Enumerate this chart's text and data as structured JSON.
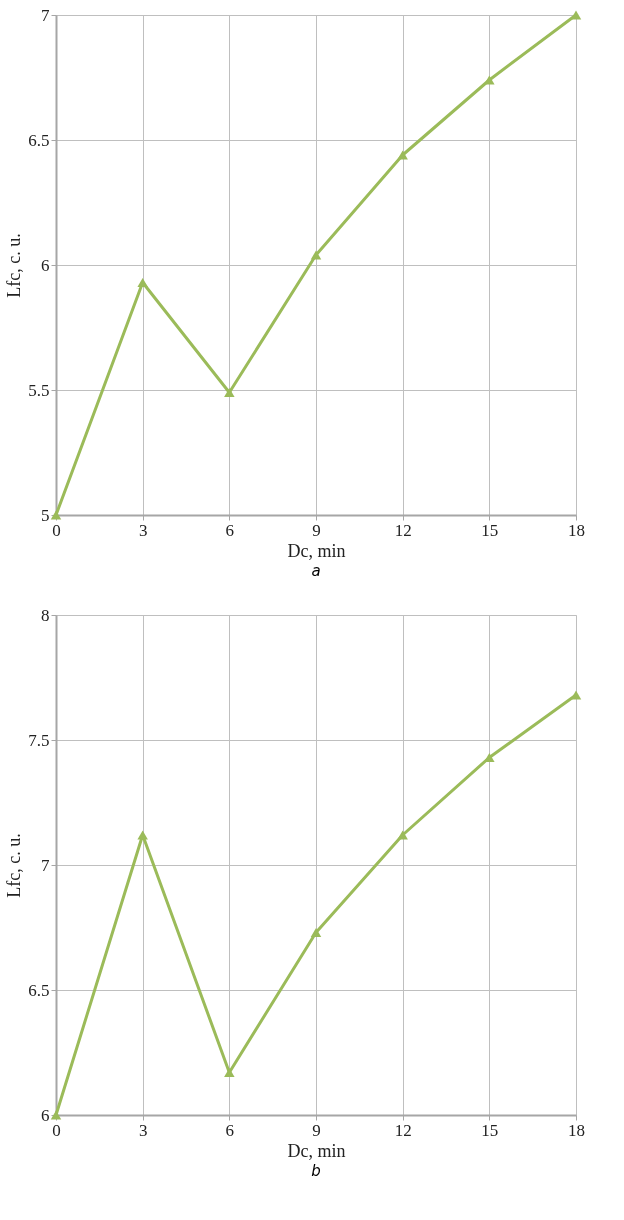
{
  "chart_data": [
    {
      "type": "line",
      "x": [
        0,
        3,
        6,
        9,
        12,
        15,
        18
      ],
      "xlabel": "Dc, min",
      "ylabel": "Lfc, c. u.",
      "annotations": [
        "a"
      ],
      "series": [
        {
          "color": "#9bbb59",
          "values": [
            5.0,
            5.93,
            5.49,
            6.04,
            6.44,
            6.74,
            7.0
          ]
        }
      ],
      "xlim": [
        0,
        18
      ],
      "xticks": [
        0,
        3,
        6,
        9,
        12,
        15,
        18
      ],
      "ylim": [
        5,
        7
      ],
      "yticks": [
        5,
        5.5,
        6,
        6.5,
        7
      ],
      "grid": true,
      "marker": "triangle",
      "line_style": "solid"
    },
    {
      "type": "line",
      "x": [
        0,
        3,
        6,
        9,
        12,
        15,
        18
      ],
      "xlabel": "Dc, min",
      "ylabel": "Lfc, c. u.",
      "annotations": [
        "b"
      ],
      "series": [
        {
          "color": "#9bbb59",
          "values": [
            6.0,
            7.12,
            6.17,
            6.73,
            7.12,
            7.43,
            7.68
          ]
        }
      ],
      "xlim": [
        0,
        18
      ],
      "xticks": [
        0,
        3,
        6,
        9,
        12,
        15,
        18
      ],
      "ylim": [
        6,
        8
      ],
      "yticks": [
        6,
        6.5,
        7,
        7.5,
        8
      ],
      "grid": true,
      "marker": "triangle",
      "line_style": "solid"
    }
  ]
}
